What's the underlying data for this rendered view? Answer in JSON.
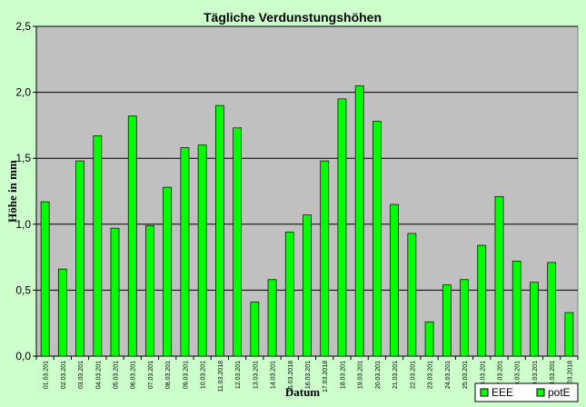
{
  "chart_data": {
    "type": "bar",
    "title": "Tägliche Verdunstungshöhen",
    "xlabel": "Datum",
    "ylabel": "Höhe in mm",
    "ylim": [
      0,
      2.5
    ],
    "yticks": [
      "0,0",
      "0,5",
      "1,0",
      "1,5",
      "2,0",
      "2,5"
    ],
    "ytick_values": [
      0,
      0.5,
      1.0,
      1.5,
      2.0,
      2.5
    ],
    "grid": true,
    "legend_position": "bottom-right",
    "categories": [
      "01.03.201",
      "02.03.201",
      "03.03.201",
      "04.03.201",
      "05.03.201",
      "06.03.201",
      "07.03.201",
      "08.03.201",
      "09.03.201",
      "10.03.201",
      "11.03.2018",
      "12.03.201",
      "13.03.201",
      "14.03.201",
      "15.03.2018",
      "16.03.201",
      "17.03.2018",
      "18.03.201",
      "19.03.201",
      "20.03.201",
      "21.03.201",
      "22.03.201",
      "23.03.201",
      "24.03.201",
      "25.03.201",
      "26.03.201",
      "27.03.201",
      "28.03.201",
      "29.03.201",
      "30.03.201",
      "31.03.2018"
    ],
    "series": [
      {
        "name": "EEE",
        "color": "#00ff00",
        "values": [
          null,
          null,
          null,
          null,
          null,
          null,
          null,
          null,
          null,
          null,
          null,
          null,
          null,
          null,
          null,
          null,
          null,
          null,
          null,
          null,
          null,
          null,
          null,
          null,
          null,
          null,
          null,
          null,
          null,
          null,
          null
        ]
      },
      {
        "name": "potE",
        "color": "#00ff00",
        "values": [
          1.17,
          0.66,
          1.48,
          1.67,
          0.97,
          1.82,
          0.99,
          1.28,
          1.58,
          1.6,
          1.9,
          1.73,
          0.41,
          0.58,
          0.94,
          1.07,
          1.48,
          1.95,
          2.05,
          1.78,
          1.15,
          0.93,
          0.26,
          0.54,
          0.58,
          0.84,
          1.21,
          0.72,
          0.56,
          0.71,
          0.33
        ]
      }
    ],
    "colors": {
      "plot_background": "#c0c0c0",
      "page_background": "#ccffcc",
      "bar": "#00ff00",
      "bar_outline": "#000000"
    }
  }
}
